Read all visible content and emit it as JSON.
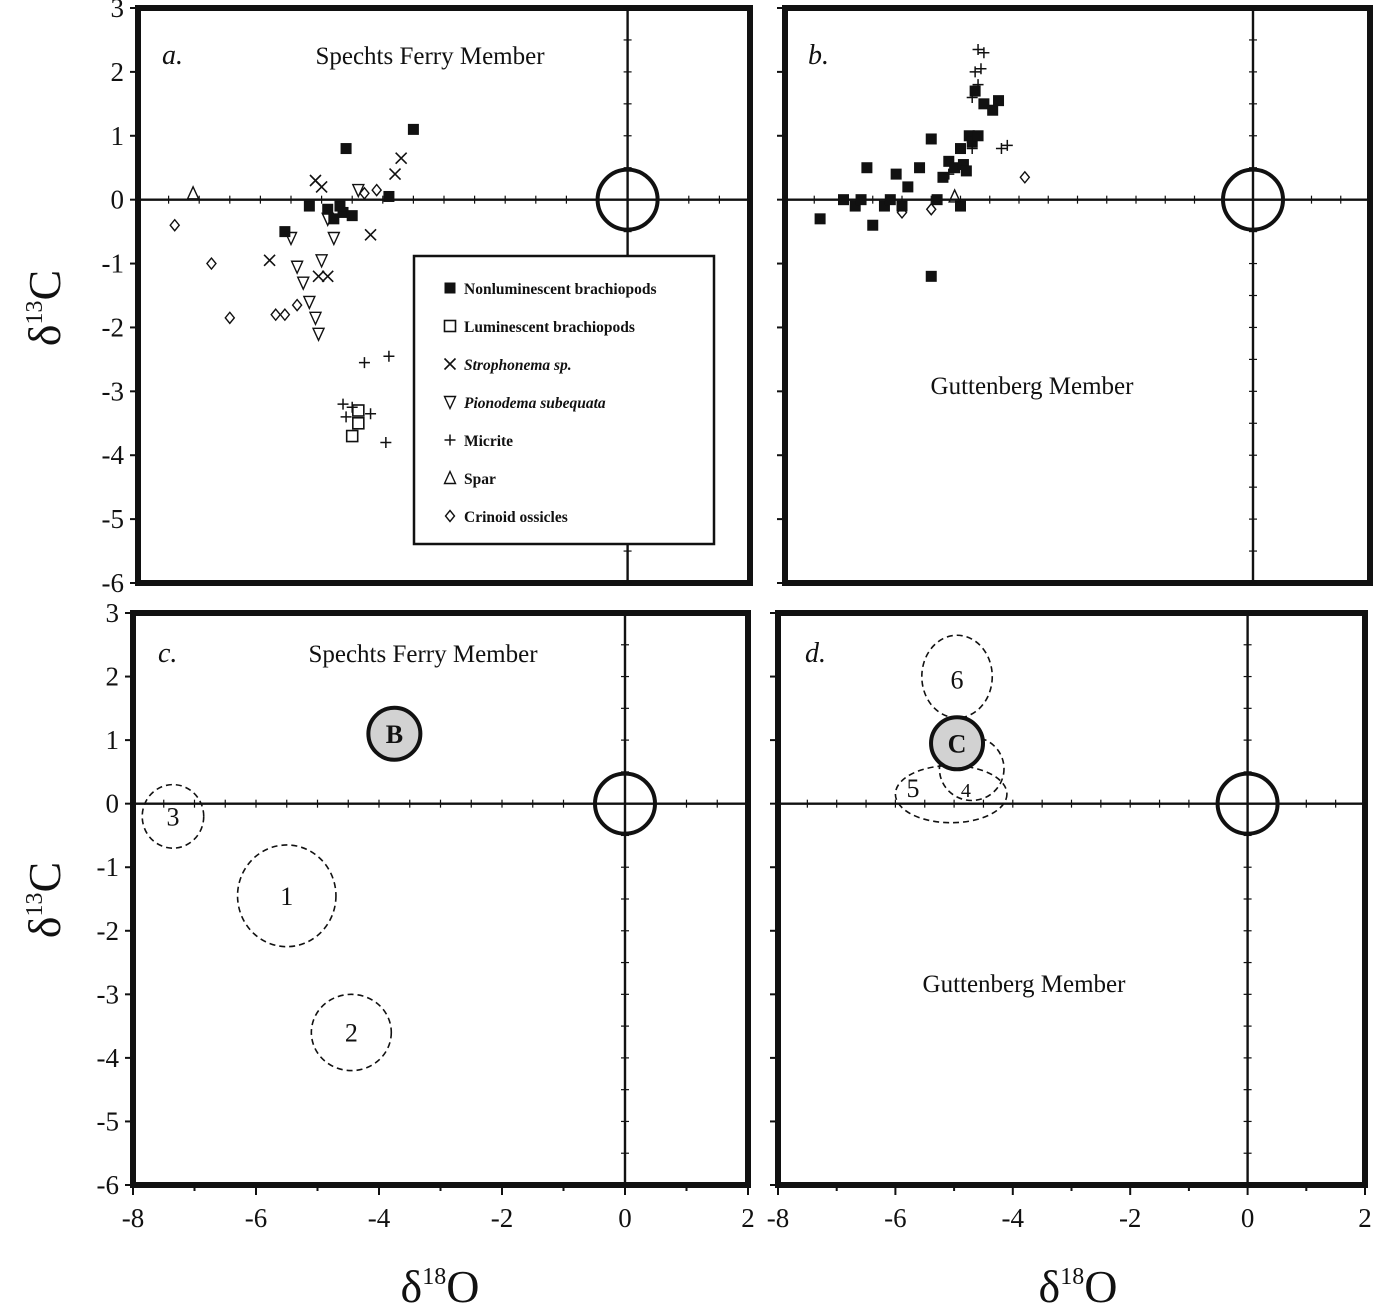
{
  "y_axis_label": {
    "main": "δ",
    "sup": "13",
    "end": "C"
  },
  "x_axis_label": {
    "main": "δ",
    "sup": "18",
    "end": "O"
  },
  "chart_data": [
    {
      "id": "a",
      "type": "scatter",
      "panel_label": "a.",
      "title": "Spechts Ferry Member",
      "xlim": [
        -8,
        2
      ],
      "ylim": [
        -6,
        3
      ],
      "xticks": [
        "-8",
        "-6",
        "-4",
        "-2",
        "0",
        "2"
      ],
      "yticks": [
        "3",
        "2",
        "1",
        "0",
        "-1",
        "-2",
        "-3",
        "-4",
        "-5",
        "-6"
      ],
      "legend_position": "center-right",
      "reference_circle": {
        "x": 0,
        "y": 0
      },
      "series": [
        {
          "name": "Nonluminescent brachiopods",
          "marker": "filled-square",
          "points": [
            [
              -3.5,
              1.1
            ],
            [
              -4.6,
              0.8
            ],
            [
              -5.6,
              -0.5
            ],
            [
              -5.2,
              -0.1
            ],
            [
              -4.9,
              -0.15
            ],
            [
              -4.8,
              -0.3
            ],
            [
              -4.65,
              -0.2
            ],
            [
              -4.5,
              -0.25
            ],
            [
              -3.9,
              0.05
            ],
            [
              -4.7,
              -0.1
            ]
          ]
        },
        {
          "name": "Luminescent brachiopods",
          "marker": "open-square",
          "points": [
            [
              -4.4,
              -3.3
            ],
            [
              -4.4,
              -3.5
            ],
            [
              -4.5,
              -3.7
            ]
          ]
        },
        {
          "name": "Strophonema sp.",
          "marker": "x",
          "points": [
            [
              -3.7,
              0.65
            ],
            [
              -3.8,
              0.4
            ],
            [
              -5.1,
              0.3
            ],
            [
              -5.0,
              0.2
            ],
            [
              -4.2,
              -0.55
            ],
            [
              -5.85,
              -0.95
            ],
            [
              -5.05,
              -1.2
            ],
            [
              -4.9,
              -1.2
            ]
          ]
        },
        {
          "name": "Pionodema subequata",
          "marker": "open-triangle-down",
          "points": [
            [
              -4.4,
              0.15
            ],
            [
              -4.9,
              -0.3
            ],
            [
              -4.8,
              -0.6
            ],
            [
              -5.0,
              -0.95
            ],
            [
              -5.5,
              -0.6
            ],
            [
              -5.4,
              -1.05
            ],
            [
              -5.3,
              -1.3
            ],
            [
              -5.2,
              -1.6
            ],
            [
              -5.1,
              -1.85
            ],
            [
              -5.05,
              -2.1
            ]
          ]
        },
        {
          "name": "Micrite",
          "marker": "plus",
          "points": [
            [
              -3.9,
              -2.45
            ],
            [
              -4.3,
              -2.55
            ],
            [
              -4.5,
              -3.25
            ],
            [
              -4.6,
              -3.4
            ],
            [
              -4.2,
              -3.35
            ],
            [
              -3.95,
              -3.8
            ],
            [
              -4.65,
              -3.2
            ]
          ]
        },
        {
          "name": "Spar",
          "marker": "open-triangle-up",
          "points": [
            [
              -7.1,
              0.1
            ]
          ]
        },
        {
          "name": "Crinoid ossicles",
          "marker": "open-diamond",
          "points": [
            [
              -7.4,
              -0.4
            ],
            [
              -6.8,
              -1.0
            ],
            [
              -6.5,
              -1.85
            ],
            [
              -5.75,
              -1.8
            ],
            [
              -5.6,
              -1.8
            ],
            [
              -5.4,
              -1.65
            ],
            [
              -4.1,
              0.15
            ],
            [
              -4.3,
              0.1
            ]
          ]
        }
      ]
    },
    {
      "id": "b",
      "type": "scatter",
      "panel_label": "b.",
      "title": "Guttenberg Member",
      "xlim": [
        -8,
        2
      ],
      "ylim": [
        -6,
        3
      ],
      "xticks": [
        "-8",
        "-6",
        "-4",
        "-2",
        "0",
        "2"
      ],
      "yticks": [
        "3",
        "2",
        "1",
        "0",
        "-1",
        "-2",
        "-3",
        "-4",
        "-5",
        "-6"
      ],
      "reference_circle": {
        "x": 0,
        "y": 0
      },
      "series": [
        {
          "name": "Nonluminescent brachiopods",
          "marker": "filled-square",
          "points": [
            [
              -7.4,
              -0.3
            ],
            [
              -7.0,
              0.0
            ],
            [
              -6.8,
              -0.1
            ],
            [
              -6.7,
              0.0
            ],
            [
              -6.6,
              0.5
            ],
            [
              -6.5,
              -0.4
            ],
            [
              -6.3,
              -0.1
            ],
            [
              -6.2,
              0.0
            ],
            [
              -6.1,
              0.4
            ],
            [
              -6.0,
              -0.1
            ],
            [
              -5.9,
              0.2
            ],
            [
              -5.7,
              0.5
            ],
            [
              -5.5,
              0.95
            ],
            [
              -5.4,
              0.0
            ],
            [
              -5.3,
              0.35
            ],
            [
              -5.2,
              0.6
            ],
            [
              -5.1,
              0.5
            ],
            [
              -5.0,
              0.8
            ],
            [
              -4.95,
              0.55
            ],
            [
              -4.9,
              0.45
            ],
            [
              -4.85,
              1.0
            ],
            [
              -4.8,
              0.9
            ],
            [
              -4.75,
              1.7
            ],
            [
              -4.7,
              1.0
            ],
            [
              -4.6,
              1.5
            ],
            [
              -4.45,
              1.4
            ],
            [
              -4.35,
              1.55
            ],
            [
              -5.0,
              -0.1
            ],
            [
              -5.5,
              -1.2
            ]
          ]
        },
        {
          "name": "Micrite",
          "marker": "plus",
          "points": [
            [
              -4.7,
              2.35
            ],
            [
              -4.6,
              2.3
            ],
            [
              -4.65,
              2.05
            ],
            [
              -4.75,
              2.0
            ],
            [
              -4.7,
              1.8
            ],
            [
              -4.8,
              1.6
            ],
            [
              -4.3,
              0.8
            ],
            [
              -4.2,
              0.85
            ],
            [
              -5.2,
              0.4
            ],
            [
              -4.8,
              0.8
            ]
          ]
        },
        {
          "name": "Crinoid ossicles",
          "marker": "open-diamond",
          "points": [
            [
              -3.9,
              0.35
            ],
            [
              -5.5,
              -0.15
            ],
            [
              -6.0,
              -0.2
            ]
          ]
        },
        {
          "name": "Spar",
          "marker": "open-triangle-up",
          "points": [
            [
              -5.1,
              0.05
            ]
          ]
        }
      ]
    },
    {
      "id": "c",
      "type": "scatter",
      "panel_label": "c.",
      "title": "Spechts Ferry Member",
      "xlim": [
        -8,
        2
      ],
      "ylim": [
        -6,
        3
      ],
      "xticks": [
        "-8",
        "-6",
        "-4",
        "-2",
        "0",
        "2"
      ],
      "yticks": [
        "3",
        "2",
        "1",
        "0",
        "-1",
        "-2",
        "-3",
        "-4",
        "-5",
        "-6"
      ],
      "reference_circle": {
        "x": 0,
        "y": 0
      },
      "fields": [
        {
          "label": "1",
          "x": -5.5,
          "y": -1.45,
          "rx": 0.8,
          "ry": 0.8
        },
        {
          "label": "2",
          "x": -4.45,
          "y": -3.6,
          "rx": 0.65,
          "ry": 0.6
        },
        {
          "label": "3",
          "x": -7.35,
          "y": -0.2,
          "rx": 0.5,
          "ry": 0.5
        }
      ],
      "highlight": {
        "label": "B",
        "x": -3.75,
        "y": 1.1
      }
    },
    {
      "id": "d",
      "type": "scatter",
      "panel_label": "d.",
      "title": "Guttenberg Member",
      "xlim": [
        -8,
        2
      ],
      "ylim": [
        -6,
        3
      ],
      "xticks": [
        "-8",
        "-6",
        "-4",
        "-2",
        "0",
        "2"
      ],
      "yticks": [
        "3",
        "2",
        "1",
        "0",
        "-1",
        "-2",
        "-3",
        "-4",
        "-5",
        "-6"
      ],
      "reference_circle": {
        "x": 0,
        "y": 0
      },
      "fields": [
        {
          "label": "6",
          "x": -4.95,
          "y": 2.0,
          "rx": 0.6,
          "ry": 0.65,
          "label_x": -4.95,
          "label_y": 1.95
        },
        {
          "label": "5",
          "x": -5.05,
          "y": 0.15,
          "rx": 0.95,
          "ry": 0.45,
          "label_x": -5.7,
          "label_y": 0.25
        },
        {
          "label": "4",
          "x": -4.7,
          "y": 0.55,
          "rx": 0.55,
          "ry": 0.5,
          "label_x": -4.8,
          "label_y": 0.25
        }
      ],
      "highlight": {
        "label": "C",
        "x": -4.95,
        "y": 0.95
      }
    }
  ]
}
